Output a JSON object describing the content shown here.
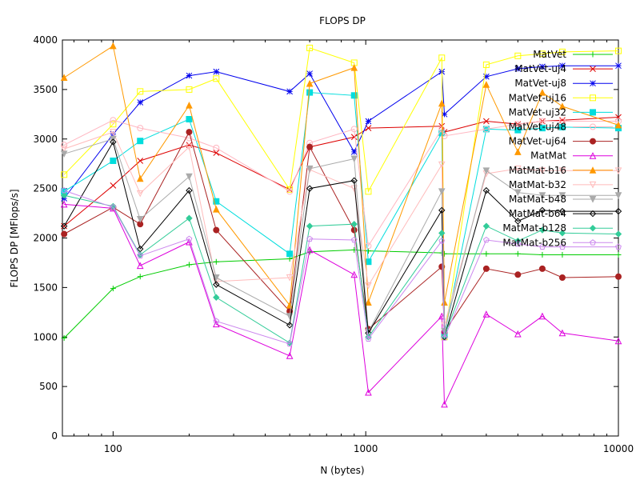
{
  "chart_data": {
    "type": "line",
    "title": "FLOPS DP",
    "xlabel": "N (bytes)",
    "ylabel": "FLOPS DP [MFlops/s]",
    "x_scale": "log",
    "xlim": [
      63,
      10000
    ],
    "ylim": [
      0,
      4000
    ],
    "x_ticks": [
      {
        "v": 100,
        "label": "100"
      },
      {
        "v": 1000,
        "label": "1000"
      },
      {
        "v": 10000,
        "label": "10000"
      }
    ],
    "y_ticks": [
      0,
      500,
      1000,
      1500,
      2000,
      2500,
      3000,
      3500,
      4000
    ],
    "grid": false,
    "legend_position": "top-right",
    "x": [
      64,
      100,
      128,
      200,
      256,
      500,
      600,
      900,
      1024,
      2000,
      2048,
      3000,
      4000,
      5000,
      6000,
      10000
    ],
    "series": [
      {
        "name": "MatVet",
        "color": "#00cc00",
        "marker": "plus",
        "values": [
          990,
          1490,
          1610,
          1730,
          1760,
          1790,
          1860,
          1880,
          1870,
          1850,
          1840,
          1840,
          1840,
          1830,
          1830,
          1830
        ]
      },
      {
        "name": "MatVet-uj4",
        "color": "#dd0000",
        "marker": "cross",
        "values": [
          2120,
          2530,
          2780,
          2940,
          2860,
          2490,
          2920,
          3020,
          3110,
          3130,
          3070,
          3180,
          3150,
          3180,
          3190,
          3220
        ]
      },
      {
        "name": "MatVet-uj8",
        "color": "#0000ee",
        "marker": "star",
        "values": [
          2400,
          3050,
          3370,
          3640,
          3680,
          3480,
          3660,
          2870,
          3180,
          3680,
          3250,
          3630,
          3710,
          3730,
          3740,
          3740
        ]
      },
      {
        "name": "MatVet-uj16",
        "color": "#ffff00",
        "marker": "open-square",
        "values": [
          2640,
          3150,
          3480,
          3500,
          3610,
          2490,
          3920,
          3770,
          2470,
          3820,
          1000,
          3750,
          3840,
          3860,
          3880,
          3890
        ]
      },
      {
        "name": "MatVet-uj32",
        "color": "#00dddd",
        "marker": "filled-square",
        "values": [
          2470,
          2780,
          2980,
          3200,
          2370,
          1840,
          3470,
          3440,
          1760,
          3060,
          1020,
          3100,
          3090,
          3110,
          3120,
          3110
        ]
      },
      {
        "name": "MatVet-uj48",
        "color": "#ffb6c1",
        "marker": "open-circle",
        "values": [
          2940,
          3190,
          3110,
          3010,
          2910,
          2470,
          2960,
          3100,
          1920,
          3100,
          3030,
          3100,
          3150,
          3180,
          3180,
          3180
        ]
      },
      {
        "name": "MatVet-uj64",
        "color": "#aa2222",
        "marker": "filled-circle",
        "values": [
          2040,
          2310,
          2140,
          3070,
          2080,
          1260,
          2920,
          2080,
          1080,
          1710,
          1050,
          1690,
          1630,
          1690,
          1600,
          1610
        ]
      },
      {
        "name": "MatMat",
        "color": "#dd00dd",
        "marker": "open-triangle",
        "values": [
          2340,
          2300,
          1720,
          1960,
          1130,
          810,
          1880,
          1630,
          440,
          1210,
          320,
          1230,
          1030,
          1210,
          1040,
          960
        ]
      },
      {
        "name": "MatMat-b16",
        "color": "#ff9900",
        "marker": "filled-triangle",
        "values": [
          3620,
          3940,
          2600,
          3340,
          2290,
          1320,
          3560,
          3720,
          1350,
          3360,
          1350,
          3550,
          2870,
          3470,
          3330,
          3140
        ]
      },
      {
        "name": "MatMat-b32",
        "color": "#ffbbbb",
        "marker": "open-down-triangle",
        "values": [
          2900,
          3070,
          2450,
          2920,
          1560,
          1600,
          2690,
          2500,
          1520,
          2740,
          1120,
          2650,
          2700,
          2680,
          2680,
          2680
        ]
      },
      {
        "name": "MatMat-b48",
        "color": "#aaaaaa",
        "marker": "filled-down-triangle",
        "values": [
          2850,
          3000,
          2190,
          2620,
          1600,
          1210,
          2700,
          2800,
          1050,
          2470,
          1060,
          2680,
          2460,
          2430,
          2430,
          2430
        ]
      },
      {
        "name": "MatMat-b64",
        "color": "#000000",
        "marker": "open-diamond",
        "values": [
          2120,
          2970,
          1890,
          2480,
          1530,
          1120,
          2500,
          2580,
          1040,
          2280,
          1000,
          2480,
          2170,
          2280,
          2270,
          2270
        ]
      },
      {
        "name": "MatMat-b128",
        "color": "#33cc99",
        "marker": "filled-diamond",
        "values": [
          2430,
          2320,
          1830,
          2200,
          1400,
          940,
          2120,
          2140,
          1000,
          2050,
          1010,
          2120,
          1970,
          2080,
          2050,
          2040
        ]
      },
      {
        "name": "MatMat-b256",
        "color": "#cc88ee",
        "marker": "open-pentagon",
        "values": [
          2480,
          2310,
          1820,
          1990,
          1160,
          930,
          1990,
          1980,
          980,
          1970,
          990,
          1980,
          1940,
          1910,
          1910,
          1910
        ]
      }
    ]
  }
}
